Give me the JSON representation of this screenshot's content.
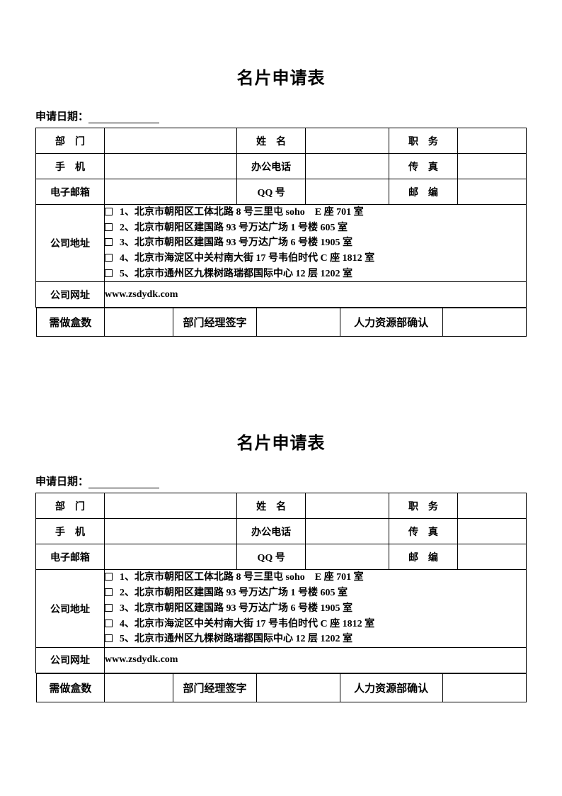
{
  "title": "名片申请表",
  "date_label": "申请日期：",
  "row1": {
    "dept": "部　门",
    "name": "姓　名",
    "position": "职　务"
  },
  "row2": {
    "mobile": "手　机",
    "office": "办公电话",
    "fax": "传　真"
  },
  "row3": {
    "email": "电子邮箱",
    "qq": "QQ 号",
    "zip": "邮　编"
  },
  "addr_label": "公司地址",
  "addresses": [
    "1、北京市朝阳区工体北路 8 号三里屯 soho　E 座  701 室",
    "2、北京市朝阳区建国路 93 号万达广场 1 号楼 605 室",
    "3、北京市朝阳区建国路 93 号万达广场 6 号楼 1905 室",
    "4、北京市海淀区中关村南大街 17 号韦伯时代 C 座 1812 室",
    "5、北京市通州区九棵树路瑞都国际中心 12 层 1202 室"
  ],
  "website_label": "公司网址",
  "website_value": "www.zsdydk.com",
  "rowlast": {
    "boxes": "需做盒数",
    "mgr": "部门经理签字",
    "hr": "人力资源部确认"
  }
}
